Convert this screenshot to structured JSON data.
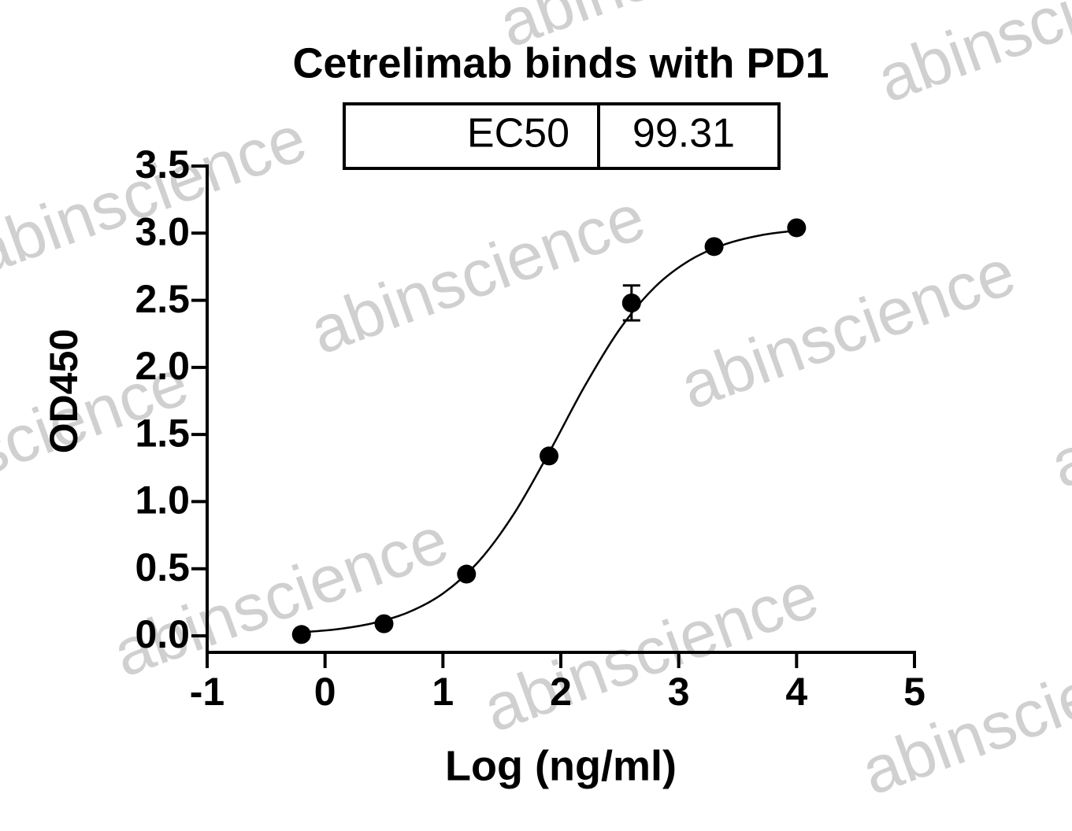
{
  "chart_data": {
    "type": "scatter",
    "title": "Cetrelimab binds with PD1",
    "x_label": "Log (ng/ml)",
    "y_label": "OD450",
    "watermark": "abinscience",
    "annotation": {
      "label": "EC50",
      "value": 99.31
    },
    "xlim": [
      -1,
      5
    ],
    "xticks": [
      -1,
      0,
      1,
      2,
      3,
      4,
      5
    ],
    "ylim": [
      0,
      3.5
    ],
    "yticks": [
      {
        "value": 0,
        "label": "0.0"
      },
      {
        "value": 0.5,
        "label": "0.5"
      },
      {
        "value": 1,
        "label": "1.0"
      },
      {
        "value": 1.5,
        "label": "1.5"
      },
      {
        "value": 2,
        "label": "2.0"
      },
      {
        "value": 2.5,
        "label": "2.5"
      },
      {
        "value": 3,
        "label": "3.0"
      },
      {
        "value": 3.5,
        "label": "3.5"
      }
    ],
    "color": "#000000",
    "points": {
      "x": [
        -0.2,
        0.5,
        1.2,
        1.9,
        2.6,
        3.3,
        4.0
      ],
      "values": [
        0.01,
        0.09,
        0.46,
        1.34,
        2.48,
        2.9,
        3.04
      ],
      "errors": [
        null,
        null,
        null,
        null,
        0.13,
        null,
        null
      ]
    },
    "curve": {
      "x": [
        -0.2,
        0.1,
        0.4,
        0.7,
        1.0,
        1.3,
        1.6,
        1.9,
        2.2,
        2.5,
        2.8,
        3.1,
        3.4,
        3.7,
        4.0
      ],
      "values": [
        0.026,
        0.049,
        0.093,
        0.173,
        0.315,
        0.551,
        0.906,
        1.365,
        1.856,
        2.285,
        2.6,
        2.801,
        2.919,
        2.985,
        3.02
      ]
    }
  }
}
